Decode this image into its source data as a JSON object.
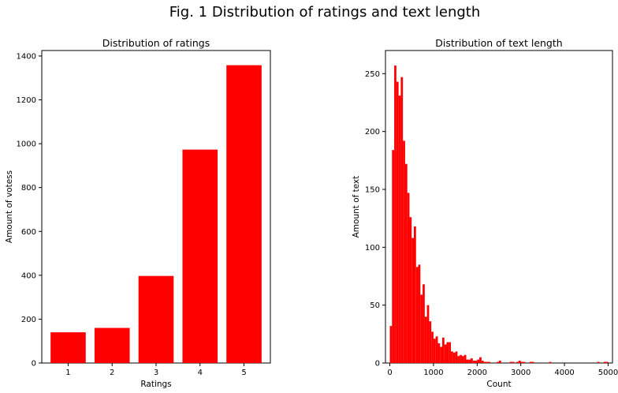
{
  "figure": {
    "suptitle": "Fig. 1 Distribution of ratings and text length"
  },
  "chart_data": [
    {
      "type": "bar",
      "title": "Distribution of ratings",
      "xlabel": "Ratings",
      "ylabel": "Amount of votess",
      "categories": [
        "1",
        "2",
        "3",
        "4",
        "5"
      ],
      "values": [
        140,
        160,
        397,
        973,
        1358
      ],
      "ylim": [
        0,
        1425
      ],
      "yticks": [
        0,
        200,
        400,
        600,
        800,
        1000,
        1200,
        1400
      ],
      "color": "#ff0000",
      "grid": false
    },
    {
      "type": "bar",
      "subtype": "histogram",
      "title": "Distribution of text length",
      "xlabel": "Count",
      "ylabel": "Amount of text",
      "bin_start": 0,
      "bin_width": 50,
      "values": [
        32,
        184,
        257,
        243,
        231,
        247,
        192,
        172,
        147,
        126,
        108,
        118,
        83,
        85,
        59,
        68,
        40,
        50,
        36,
        27,
        21,
        23,
        17,
        14,
        22,
        16,
        18,
        18,
        10,
        9,
        10,
        6,
        7,
        6,
        7,
        3,
        3,
        4,
        2,
        2,
        3,
        5,
        2,
        1,
        1,
        1,
        0,
        0,
        0,
        1,
        2,
        0,
        0,
        0,
        0,
        1,
        1,
        0,
        1,
        2,
        1,
        1,
        0,
        0,
        1,
        1,
        0,
        0,
        0,
        0,
        0,
        0,
        0,
        1,
        0,
        0,
        0,
        0,
        0,
        0,
        0,
        0,
        0,
        0,
        0,
        0,
        0,
        0,
        0,
        0,
        0,
        0,
        0,
        0,
        0,
        1,
        0,
        0,
        1,
        1
      ],
      "xlim": [
        -100,
        5100
      ],
      "ylim": [
        0,
        270
      ],
      "xticks": [
        0,
        1000,
        2000,
        3000,
        4000,
        5000
      ],
      "yticks": [
        0,
        50,
        100,
        150,
        200,
        250
      ],
      "color": "#ff0000",
      "grid": false
    }
  ]
}
